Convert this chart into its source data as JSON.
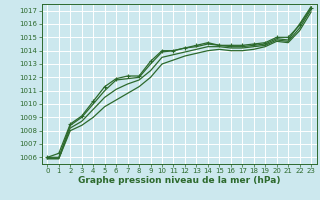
{
  "title": "Graphe pression niveau de la mer (hPa)",
  "bg_color": "#cce8ee",
  "grid_color": "#ffffff",
  "line_color": "#2d6a2d",
  "marker_color": "#2d6a2d",
  "x_values": [
    0,
    1,
    2,
    3,
    4,
    5,
    6,
    7,
    8,
    9,
    10,
    11,
    12,
    13,
    14,
    15,
    16,
    17,
    18,
    19,
    20,
    21,
    22,
    23
  ],
  "series": [
    [
      1006.0,
      1006.3,
      1008.5,
      1009.1,
      1010.2,
      1011.3,
      1011.9,
      1012.1,
      1012.1,
      1013.2,
      1014.0,
      1014.0,
      1014.2,
      1014.4,
      1014.6,
      1014.4,
      1014.4,
      1014.4,
      1014.5,
      1014.6,
      1015.0,
      1015.0,
      1015.9,
      1017.2
    ],
    [
      1006.0,
      1006.0,
      1008.4,
      1009.0,
      1010.0,
      1011.0,
      1011.8,
      1011.9,
      1012.0,
      1013.0,
      1013.9,
      1014.0,
      1014.2,
      1014.3,
      1014.5,
      1014.4,
      1014.3,
      1014.3,
      1014.4,
      1014.5,
      1014.9,
      1014.8,
      1016.0,
      1017.3
    ],
    [
      1005.9,
      1005.9,
      1008.2,
      1008.7,
      1009.6,
      1010.5,
      1011.1,
      1011.5,
      1011.8,
      1012.5,
      1013.5,
      1013.7,
      1013.9,
      1014.1,
      1014.3,
      1014.3,
      1014.2,
      1014.2,
      1014.3,
      1014.4,
      1014.8,
      1014.7,
      1015.7,
      1017.1
    ],
    [
      1005.9,
      1005.9,
      1008.0,
      1008.4,
      1009.0,
      1009.8,
      1010.3,
      1010.8,
      1011.3,
      1012.0,
      1013.0,
      1013.3,
      1013.6,
      1013.8,
      1014.0,
      1014.1,
      1014.0,
      1014.0,
      1014.1,
      1014.3,
      1014.7,
      1014.6,
      1015.5,
      1016.9
    ]
  ],
  "ylim": [
    1005.5,
    1017.5
  ],
  "yticks": [
    1006,
    1007,
    1008,
    1009,
    1010,
    1011,
    1012,
    1013,
    1014,
    1015,
    1016,
    1017
  ],
  "xlim": [
    -0.5,
    23.5
  ],
  "xticks": [
    0,
    1,
    2,
    3,
    4,
    5,
    6,
    7,
    8,
    9,
    10,
    11,
    12,
    13,
    14,
    15,
    16,
    17,
    18,
    19,
    20,
    21,
    22,
    23
  ],
  "fontsize_label": 6.5,
  "fontsize_tick": 5.0,
  "tick_color": "#2d6a2d",
  "label_color": "#2d6a2d"
}
